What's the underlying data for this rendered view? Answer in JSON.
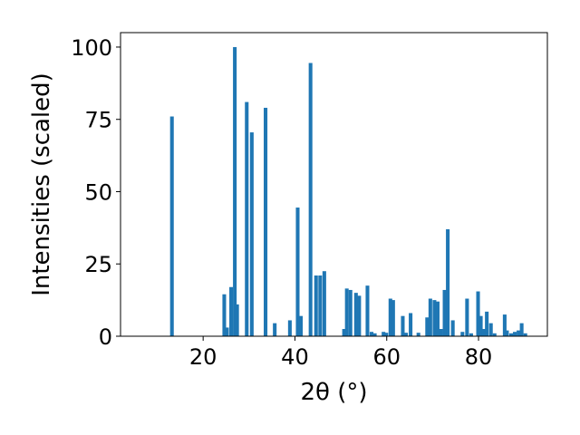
{
  "chart_data": {
    "type": "bar",
    "xlabel": "2θ (°)",
    "ylabel": "Intensities (scaled)",
    "xlim": [
      2,
      95
    ],
    "ylim": [
      0,
      105
    ],
    "xticks": [
      20,
      40,
      60,
      80
    ],
    "yticks": [
      0,
      25,
      50,
      75,
      100
    ],
    "bar_width": 0.8,
    "color": "#1f77b4",
    "grid": false,
    "x": [
      13.2,
      24.6,
      25.2,
      26.1,
      26.9,
      27.4,
      29.5,
      30.6,
      33.6,
      35.6,
      38.9,
      40.6,
      41.3,
      43.4,
      44.6,
      45.5,
      46.4,
      50.7,
      51.3,
      52.1,
      53.3,
      54.0,
      55.8,
      56.7,
      57.4,
      59.3,
      59.9,
      60.8,
      61.4,
      63.5,
      64.2,
      65.2,
      66.9,
      68.8,
      69.5,
      70.4,
      71.1,
      71.8,
      72.6,
      73.3,
      74.4,
      76.5,
      77.5,
      78.4,
      79.9,
      80.5,
      81.1,
      81.8,
      82.7,
      83.5,
      85.7,
      86.2,
      87.1,
      87.9,
      88.7,
      89.4,
      90.2
    ],
    "values": [
      76,
      14.5,
      3,
      17,
      100,
      11,
      81,
      70.5,
      79,
      4.5,
      5.5,
      44.5,
      7,
      94.5,
      21,
      21,
      22.5,
      2.5,
      16.5,
      16,
      15,
      14,
      17.5,
      1.5,
      1,
      1.5,
      1.2,
      13,
      12.5,
      7,
      1.2,
      8,
      1.2,
      6.5,
      13,
      12.5,
      12,
      2.5,
      16,
      37,
      5.5,
      1.5,
      13,
      1,
      15.5,
      7,
      2.5,
      8.5,
      4.5,
      1,
      7.5,
      2,
      1,
      1.5,
      2,
      4.5,
      1
    ]
  }
}
